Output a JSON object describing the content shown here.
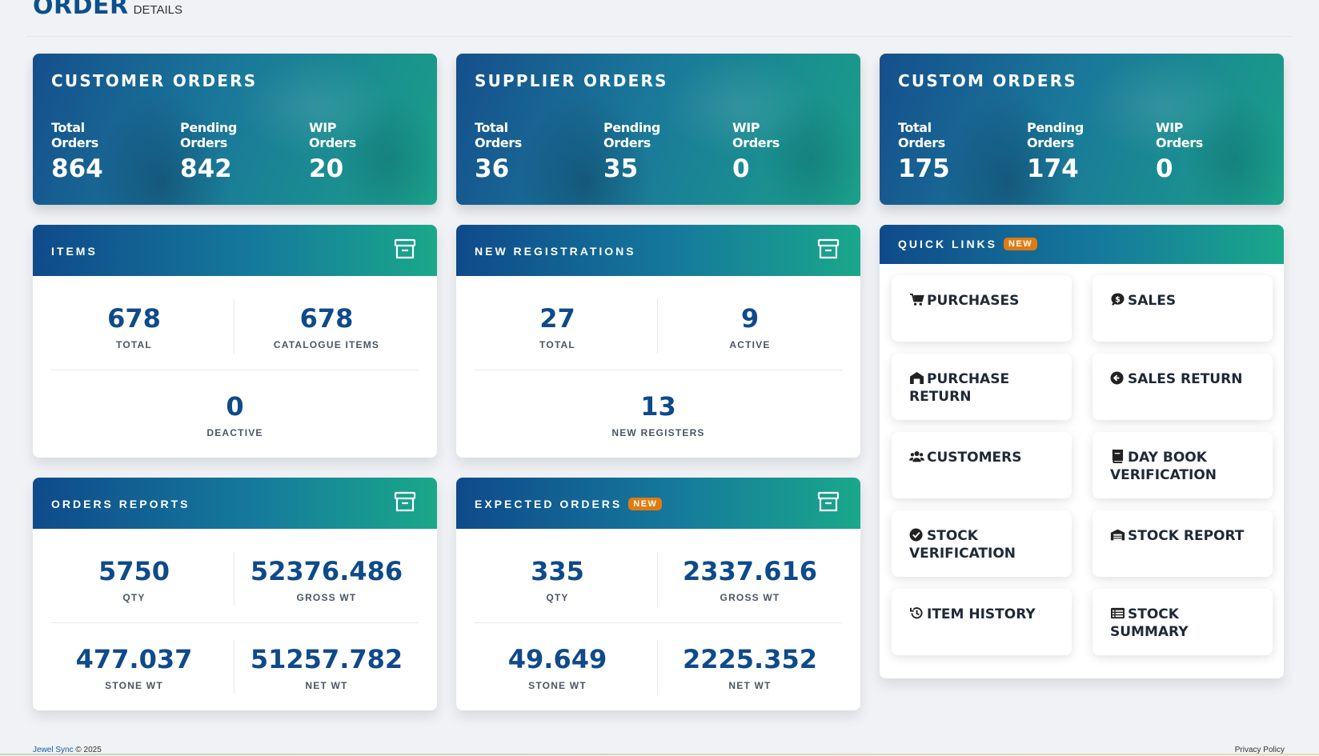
{
  "header": {
    "title": "ORDER",
    "subtitle": "DETAILS"
  },
  "stat_cards": [
    {
      "title": "CUSTOMER ORDERS",
      "metrics": [
        {
          "label": "Total\nOrders",
          "value": "864"
        },
        {
          "label": "Pending\nOrders",
          "value": "842"
        },
        {
          "label": "WIP\nOrders",
          "value": "20"
        }
      ]
    },
    {
      "title": "SUPPLIER ORDERS",
      "metrics": [
        {
          "label": "Total\nOrders",
          "value": "36"
        },
        {
          "label": "Pending\nOrders",
          "value": "35"
        },
        {
          "label": "WIP\nOrders",
          "value": "0"
        }
      ]
    },
    {
      "title": "CUSTOM ORDERS",
      "metrics": [
        {
          "label": "Total\nOrders",
          "value": "175"
        },
        {
          "label": "Pending\nOrders",
          "value": "174"
        },
        {
          "label": "WIP\nOrders",
          "value": "0"
        }
      ]
    }
  ],
  "items": {
    "title": "ITEMS",
    "total": {
      "value": "678",
      "label": "TOTAL"
    },
    "catalogue": {
      "value": "678",
      "label": "CATALOGUE ITEMS"
    },
    "deactive": {
      "value": "0",
      "label": "DEACTIVE"
    }
  },
  "registrations": {
    "title": "NEW REGISTRATIONS",
    "total": {
      "value": "27",
      "label": "TOTAL"
    },
    "active": {
      "value": "9",
      "label": "ACTIVE"
    },
    "new": {
      "value": "13",
      "label": "NEW REGISTERS"
    }
  },
  "orders_reports": {
    "title": "ORDERS REPORTS",
    "qty": {
      "value": "5750",
      "label": "QTY"
    },
    "gross": {
      "value": "52376.486",
      "label": "GROSS WT"
    },
    "stone": {
      "value": "477.037",
      "label": "STONE WT"
    },
    "net": {
      "value": "51257.782",
      "label": "NET WT"
    }
  },
  "expected_orders": {
    "title": "EXPECTED ORDERS",
    "badge": "NEW",
    "qty": {
      "value": "335",
      "label": "QTY"
    },
    "gross": {
      "value": "2337.616",
      "label": "GROSS WT"
    },
    "stone": {
      "value": "49.649",
      "label": "STONE WT"
    },
    "net": {
      "value": "2225.352",
      "label": "NET WT"
    }
  },
  "quick_links": {
    "title": "QUICK LINKS",
    "badge": "NEW",
    "links": [
      {
        "label": "PURCHASES",
        "icon": "cart-icon"
      },
      {
        "label": "SALES",
        "icon": "rupee-bubble-icon"
      },
      {
        "label": "PURCHASE RETURN",
        "icon": "warehouse-return-icon"
      },
      {
        "label": "SALES RETURN",
        "icon": "arrow-circle-left-icon"
      },
      {
        "label": "CUSTOMERS",
        "icon": "users-icon"
      },
      {
        "label": "DAY BOOK VERIFICATION",
        "icon": "book-icon"
      },
      {
        "label": "STOCK VERIFICATION",
        "icon": "check-circle-icon"
      },
      {
        "label": "STOCK REPORT",
        "icon": "warehouse-icon"
      },
      {
        "label": "ITEM HISTORY",
        "icon": "history-icon"
      },
      {
        "label": "STOCK SUMMARY",
        "icon": "list-icon"
      }
    ]
  },
  "footer": {
    "brand": "Jewel Sync",
    "copyright": "© 2025",
    "privacy": "Privacy Policy"
  },
  "colors": {
    "primary": "#0f4a8a",
    "accent_teal": "#1aa88a",
    "badge": "#e07b12"
  }
}
